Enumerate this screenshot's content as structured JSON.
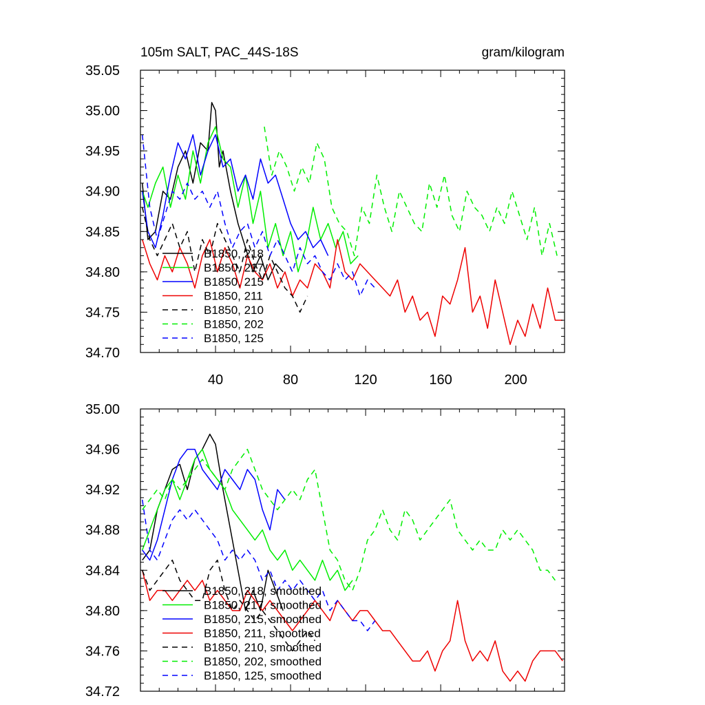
{
  "chart_data": [
    {
      "type": "line",
      "title": "105m SALT, PAC_44S-18S",
      "units": "gram/kilogram",
      "xlim": [
        0,
        226
      ],
      "ylim": [
        34.7,
        35.05
      ],
      "xticks": [
        40,
        80,
        120,
        160,
        200
      ],
      "yticks": [
        34.7,
        34.75,
        34.8,
        34.85,
        34.9,
        34.95,
        35.0,
        35.05
      ],
      "ytick_decimals": 2,
      "show_xtick_labels": true,
      "series": [
        {
          "name": "B1850, 218",
          "color": "#000000",
          "dash": "solid",
          "x": [
            1,
            4,
            8,
            12,
            16,
            20,
            24,
            28,
            32,
            36,
            38,
            40,
            42,
            44,
            48,
            52,
            56,
            60,
            64,
            68,
            72,
            76
          ],
          "values": [
            34.91,
            34.84,
            34.85,
            34.9,
            34.89,
            34.93,
            34.95,
            34.91,
            34.96,
            34.95,
            35.01,
            35.0,
            34.93,
            34.95,
            34.9,
            34.86,
            34.83,
            34.8,
            34.82,
            34.79,
            34.81,
            34.8
          ]
        },
        {
          "name": "B1850, 217",
          "color": "#00ee00",
          "dash": "solid",
          "x": [
            1,
            4,
            8,
            12,
            16,
            20,
            24,
            28,
            32,
            36,
            40,
            44,
            48,
            52,
            56,
            60,
            64,
            68,
            72,
            76,
            80,
            84,
            88,
            92,
            96,
            100,
            104,
            108,
            112,
            116
          ],
          "values": [
            34.9,
            34.88,
            34.91,
            34.93,
            34.88,
            34.92,
            34.89,
            34.95,
            34.91,
            34.96,
            34.98,
            34.94,
            34.93,
            34.88,
            34.92,
            34.86,
            34.9,
            34.83,
            34.86,
            34.82,
            34.85,
            34.8,
            34.83,
            34.88,
            34.84,
            34.86,
            34.83,
            34.85,
            34.81,
            34.82
          ]
        },
        {
          "name": "B1850, 215",
          "color": "#0000ff",
          "dash": "solid",
          "x": [
            1,
            4,
            8,
            12,
            16,
            20,
            24,
            28,
            32,
            36,
            40,
            44,
            48,
            52,
            56,
            60,
            64,
            68,
            72,
            76,
            80,
            84,
            88,
            92,
            96,
            100
          ],
          "values": [
            34.9,
            34.85,
            34.83,
            34.87,
            34.92,
            34.96,
            34.94,
            34.97,
            34.92,
            34.95,
            34.97,
            34.93,
            34.94,
            34.9,
            34.92,
            34.89,
            34.94,
            34.91,
            34.92,
            34.89,
            34.86,
            34.84,
            34.85,
            34.83,
            34.84,
            34.82
          ]
        },
        {
          "name": "B1850, 211",
          "color": "#ee0000",
          "dash": "solid",
          "x": [
            1,
            5,
            9,
            13,
            17,
            21,
            25,
            29,
            33,
            37,
            41,
            45,
            49,
            53,
            57,
            61,
            65,
            69,
            73,
            77,
            81,
            85,
            89,
            93,
            97,
            101,
            105,
            109,
            113,
            117,
            121,
            125,
            129,
            133,
            137,
            141,
            145,
            149,
            153,
            157,
            161,
            165,
            169,
            173,
            177,
            181,
            185,
            189,
            193,
            197,
            201,
            205,
            209,
            213,
            217,
            221,
            225
          ],
          "values": [
            34.84,
            34.81,
            34.79,
            34.82,
            34.8,
            34.83,
            34.81,
            34.78,
            34.82,
            34.84,
            34.8,
            34.83,
            34.81,
            34.78,
            34.82,
            34.8,
            34.79,
            34.81,
            34.78,
            34.8,
            34.77,
            34.79,
            34.78,
            34.81,
            34.8,
            34.78,
            34.84,
            34.8,
            34.79,
            34.81,
            34.8,
            34.79,
            34.78,
            34.77,
            34.79,
            34.75,
            34.77,
            34.74,
            34.75,
            34.72,
            34.77,
            34.76,
            34.79,
            34.83,
            34.75,
            34.77,
            34.73,
            34.79,
            34.75,
            34.71,
            34.74,
            34.72,
            34.76,
            34.73,
            34.78,
            34.74,
            34.74
          ]
        },
        {
          "name": "B1850, 210",
          "color": "#000000",
          "dash": "8,6",
          "x": [
            1,
            5,
            9,
            13,
            17,
            21,
            25,
            29,
            33,
            37,
            41,
            45,
            49,
            53,
            57,
            61,
            65,
            69,
            73,
            77,
            81,
            85,
            89
          ],
          "values": [
            34.88,
            34.84,
            34.82,
            34.84,
            34.86,
            34.83,
            34.85,
            34.8,
            34.84,
            34.82,
            34.86,
            34.84,
            34.82,
            34.8,
            34.84,
            34.81,
            34.79,
            34.82,
            34.8,
            34.78,
            34.77,
            34.75,
            34.77
          ]
        },
        {
          "name": "B1850, 202",
          "color": "#00ee00",
          "dash": "8,6",
          "x": [
            66,
            70,
            74,
            78,
            82,
            86,
            90,
            94,
            98,
            102,
            106,
            110,
            114,
            118,
            122,
            126,
            130,
            134,
            138,
            142,
            146,
            150,
            154,
            158,
            162,
            166,
            170,
            174,
            178,
            182,
            186,
            190,
            194,
            198,
            202,
            206,
            210,
            214,
            218,
            222
          ],
          "values": [
            34.98,
            34.92,
            34.95,
            34.93,
            34.9,
            34.93,
            34.91,
            34.96,
            34.94,
            34.88,
            34.86,
            34.85,
            34.82,
            34.88,
            34.86,
            34.92,
            34.88,
            34.85,
            34.9,
            34.88,
            34.86,
            34.85,
            34.91,
            34.88,
            34.92,
            34.87,
            34.85,
            34.9,
            34.88,
            34.87,
            34.85,
            34.88,
            34.86,
            34.9,
            34.87,
            34.84,
            34.88,
            34.82,
            34.86,
            34.82
          ]
        },
        {
          "name": "B1850, 125",
          "color": "#0000ff",
          "dash": "8,6",
          "x": [
            1,
            5,
            9,
            13,
            17,
            21,
            25,
            29,
            33,
            37,
            41,
            45,
            49,
            53,
            57,
            61,
            65,
            69,
            73,
            77,
            81,
            85,
            89,
            93,
            97,
            101,
            105,
            109,
            113,
            117,
            121,
            125
          ],
          "values": [
            34.97,
            34.88,
            34.84,
            34.87,
            34.9,
            34.89,
            34.91,
            34.89,
            34.9,
            34.88,
            34.9,
            34.86,
            34.83,
            34.85,
            34.86,
            34.83,
            34.85,
            34.82,
            34.84,
            34.82,
            34.8,
            34.83,
            34.81,
            34.82,
            34.8,
            34.79,
            34.81,
            34.79,
            34.8,
            34.77,
            34.79,
            34.78
          ]
        }
      ]
    },
    {
      "type": "line",
      "title": "",
      "units": "",
      "xlim": [
        0,
        226
      ],
      "ylim": [
        34.72,
        35.0
      ],
      "xticks": [
        40,
        80,
        120,
        160,
        200
      ],
      "yticks": [
        34.72,
        34.76,
        34.8,
        34.84,
        34.88,
        34.92,
        34.96,
        35.0
      ],
      "ytick_decimals": 2,
      "show_xtick_labels": false,
      "series": [
        {
          "name": "B1850, 218, smoothed",
          "color": "#000000",
          "dash": "solid",
          "x": [
            1,
            5,
            9,
            13,
            17,
            21,
            25,
            29,
            33,
            37,
            40,
            44,
            48,
            52,
            56,
            60,
            64,
            68,
            72,
            76
          ],
          "values": [
            34.85,
            34.86,
            34.9,
            34.92,
            34.94,
            34.945,
            34.92,
            34.95,
            34.96,
            34.975,
            34.965,
            34.92,
            34.88,
            34.84,
            34.8,
            34.82,
            34.8,
            34.84,
            34.82,
            34.8
          ]
        },
        {
          "name": "B1850, 217, smoothed",
          "color": "#00ee00",
          "dash": "solid",
          "x": [
            1,
            5,
            9,
            13,
            17,
            21,
            25,
            29,
            33,
            37,
            41,
            45,
            49,
            53,
            57,
            61,
            65,
            69,
            73,
            77,
            81,
            85,
            89,
            93,
            97,
            101,
            105,
            109,
            113
          ],
          "values": [
            34.86,
            34.88,
            34.9,
            34.92,
            34.93,
            34.91,
            34.93,
            34.95,
            34.96,
            34.94,
            34.93,
            34.92,
            34.9,
            34.89,
            34.88,
            34.87,
            34.88,
            34.86,
            34.85,
            34.86,
            34.84,
            34.85,
            34.84,
            34.83,
            34.85,
            34.83,
            34.84,
            34.82,
            34.83
          ]
        },
        {
          "name": "B1850, 215, smoothed",
          "color": "#0000ff",
          "dash": "solid",
          "x": [
            1,
            5,
            9,
            13,
            17,
            21,
            25,
            29,
            33,
            37,
            41,
            45,
            49,
            53,
            57,
            61,
            65,
            69,
            73,
            77
          ],
          "values": [
            34.86,
            34.85,
            34.87,
            34.9,
            34.93,
            34.95,
            34.96,
            34.96,
            34.94,
            34.93,
            34.92,
            34.94,
            34.93,
            34.92,
            34.94,
            34.93,
            34.9,
            34.88,
            34.92,
            34.91
          ]
        },
        {
          "name": "B1850, 211, smoothed",
          "color": "#ee0000",
          "dash": "solid",
          "x": [
            1,
            5,
            9,
            13,
            17,
            21,
            25,
            29,
            33,
            37,
            41,
            45,
            49,
            53,
            57,
            61,
            65,
            69,
            73,
            77,
            81,
            85,
            89,
            93,
            97,
            101,
            105,
            109,
            113,
            117,
            121,
            125,
            129,
            133,
            137,
            141,
            145,
            149,
            153,
            157,
            161,
            165,
            169,
            173,
            177,
            181,
            185,
            189,
            193,
            197,
            201,
            205,
            209,
            213,
            217,
            221,
            225
          ],
          "values": [
            34.84,
            34.81,
            34.82,
            34.82,
            34.81,
            34.82,
            34.83,
            34.82,
            34.83,
            34.81,
            34.82,
            34.81,
            34.8,
            34.8,
            34.82,
            34.81,
            34.8,
            34.81,
            34.8,
            34.79,
            34.78,
            34.79,
            34.8,
            34.81,
            34.8,
            34.79,
            34.81,
            34.8,
            34.79,
            34.8,
            34.8,
            34.79,
            34.78,
            34.78,
            34.77,
            34.76,
            34.75,
            34.75,
            34.76,
            34.74,
            34.76,
            34.77,
            34.81,
            34.77,
            34.75,
            34.76,
            34.75,
            34.77,
            34.74,
            34.73,
            34.74,
            34.73,
            34.75,
            34.76,
            34.76,
            34.76,
            34.75
          ]
        },
        {
          "name": "B1850, 210, smoothed",
          "color": "#000000",
          "dash": "8,6",
          "x": [
            1,
            5,
            9,
            13,
            17,
            21,
            25,
            29,
            33,
            37,
            41,
            45,
            49,
            53,
            57,
            61,
            65,
            69,
            73,
            77,
            81,
            85,
            89,
            93
          ],
          "values": [
            34.84,
            34.82,
            34.83,
            34.84,
            34.85,
            34.83,
            34.82,
            34.81,
            34.81,
            34.84,
            34.85,
            34.82,
            34.8,
            34.81,
            34.8,
            34.79,
            34.8,
            34.79,
            34.78,
            34.77,
            34.76,
            34.77,
            34.78,
            34.77
          ]
        },
        {
          "name": "B1850, 202, smoothed",
          "color": "#00ee00",
          "dash": "8,6",
          "x": [
            1,
            5,
            9,
            13,
            17,
            21,
            25,
            29,
            33,
            37,
            41,
            45,
            49,
            53,
            57,
            61,
            65,
            69,
            73,
            77,
            81,
            85,
            89,
            93,
            97,
            101,
            105,
            109,
            113,
            117,
            121,
            125,
            129,
            133,
            137,
            141,
            145,
            149,
            153,
            157,
            161,
            165,
            169,
            173,
            177,
            181,
            185,
            189,
            193,
            197,
            201,
            205,
            209,
            213,
            217,
            221
          ],
          "values": [
            34.9,
            34.91,
            34.92,
            34.91,
            34.93,
            34.92,
            34.93,
            34.94,
            34.95,
            34.94,
            34.93,
            34.92,
            34.94,
            34.95,
            34.96,
            34.94,
            34.92,
            34.91,
            34.9,
            34.91,
            34.92,
            34.91,
            34.93,
            34.94,
            34.9,
            34.86,
            34.85,
            34.83,
            34.82,
            34.84,
            34.87,
            34.88,
            34.9,
            34.88,
            34.87,
            34.9,
            34.89,
            34.87,
            34.88,
            34.89,
            34.9,
            34.91,
            34.88,
            34.87,
            34.86,
            34.87,
            34.86,
            34.86,
            34.88,
            34.87,
            34.88,
            34.87,
            34.86,
            34.84,
            34.84,
            34.83
          ]
        },
        {
          "name": "B1850, 125, smoothed",
          "color": "#0000ff",
          "dash": "8,6",
          "x": [
            1,
            5,
            9,
            13,
            17,
            21,
            25,
            29,
            33,
            37,
            41,
            45,
            49,
            53,
            57,
            61,
            65,
            69,
            73,
            77,
            81,
            85,
            89,
            93,
            97,
            101,
            105,
            109,
            113,
            117,
            121,
            125
          ],
          "values": [
            34.91,
            34.86,
            34.85,
            34.87,
            34.89,
            34.9,
            34.89,
            34.9,
            34.89,
            34.88,
            34.87,
            34.85,
            34.86,
            34.85,
            34.86,
            34.85,
            34.83,
            34.84,
            34.82,
            34.83,
            34.82,
            34.83,
            34.82,
            34.81,
            34.82,
            34.8,
            34.81,
            34.8,
            34.79,
            34.79,
            34.78,
            34.79
          ]
        }
      ]
    }
  ]
}
